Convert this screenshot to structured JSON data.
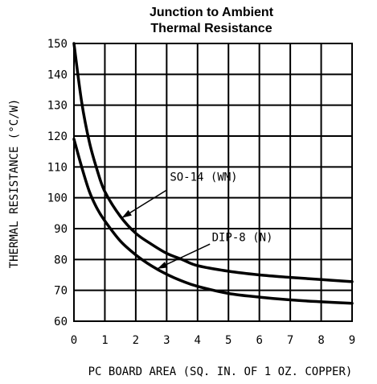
{
  "chart_data": {
    "type": "line",
    "title": [
      "Junction to Ambient",
      "Thermal Resistance"
    ],
    "xlabel": "PC BOARD AREA (SQ. IN. OF 1 OZ. COPPER)",
    "ylabel": "THERMAL RESISTANCE (°C/W)",
    "xlim": [
      0,
      9
    ],
    "ylim": [
      60,
      150
    ],
    "xticks": [
      0,
      1,
      2,
      3,
      4,
      5,
      6,
      7,
      8,
      9
    ],
    "yticks": [
      60,
      70,
      80,
      90,
      100,
      110,
      120,
      130,
      140,
      150
    ],
    "xtick_labels": [
      "0",
      "1",
      "2",
      "3",
      "4",
      "5",
      "6",
      "7",
      "8",
      "9"
    ],
    "ytick_labels": [
      "60",
      "70",
      "80",
      "90",
      "100",
      "110",
      "120",
      "130",
      "140",
      "150"
    ],
    "grid": true,
    "series": [
      {
        "name": "SO-14 (WM)",
        "x": [
          0,
          0.25,
          0.5,
          0.75,
          1,
          1.5,
          2,
          2.5,
          3,
          3.5,
          4,
          5,
          6,
          7,
          8,
          9
        ],
        "values": [
          150,
          131,
          118,
          109,
          102,
          94,
          88.5,
          85,
          82,
          80,
          78,
          76.2,
          75,
          74.2,
          73.5,
          72.8
        ]
      },
      {
        "name": "DIP-8 (N)",
        "x": [
          0,
          0.25,
          0.5,
          0.75,
          1,
          1.5,
          2,
          2.5,
          3,
          3.5,
          4,
          5,
          6,
          7,
          8,
          9
        ],
        "values": [
          119,
          110,
          102,
          96.5,
          92.5,
          86,
          81.5,
          78,
          75.2,
          73,
          71.3,
          69,
          67.8,
          66.9,
          66.3,
          65.8
        ]
      }
    ],
    "annotations": [
      {
        "text": "SO-14 (WM)",
        "label_x": 4.2,
        "label_y": 105.5,
        "arrow_from": [
          3.0,
          102.5
        ],
        "arrow_to": [
          1.55,
          93.5
        ]
      },
      {
        "text": "DIP-8 (N)",
        "label_x": 5.45,
        "label_y": 86,
        "arrow_from": [
          4.4,
          85
        ],
        "arrow_to": [
          2.7,
          77
        ]
      }
    ]
  }
}
